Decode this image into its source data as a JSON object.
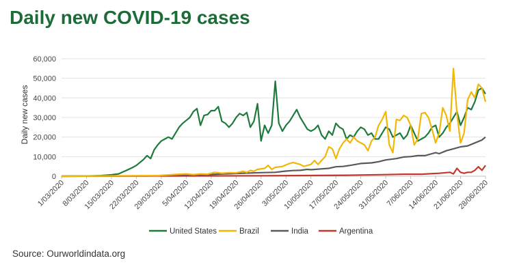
{
  "title": "Daily new COVID-19 cases",
  "source": "Source: Ourworldindata.org",
  "chart_data": {
    "type": "line",
    "title": "Daily new COVID-19 cases",
    "xlabel": "",
    "ylabel": "Daily new cases",
    "ylim": [
      0,
      60000
    ],
    "yticks": [
      "0",
      "10,000",
      "20,000",
      "30,000",
      "40,000",
      "50,000",
      "60,000"
    ],
    "xticks": [
      "1/03/2020",
      "8/03/2020",
      "15/03/2020",
      "22/03/2020",
      "29/03/2020",
      "5/04/2020",
      "12/04/2020",
      "19/04/2020",
      "26/04/2020",
      "3/05/2020",
      "10/05/2020",
      "17/05/2020",
      "24/05/2020",
      "31/05/2020",
      "7/06/2020",
      "14/06/2020",
      "21/06/2020",
      "28/06/2020"
    ],
    "grid": true,
    "legend_position": "bottom",
    "series": [
      {
        "name": "United States",
        "color": "#1e7a3c",
        "points": [
          [
            "1/03/2020",
            0
          ],
          [
            "8/03/2020",
            100
          ],
          [
            "12/03/2020",
            300
          ],
          [
            "15/03/2020",
            700
          ],
          [
            "17/03/2020",
            1200
          ],
          [
            "19/03/2020",
            2800
          ],
          [
            "21/03/2020",
            4500
          ],
          [
            "22/03/2020",
            5500
          ],
          [
            "24/03/2020",
            8500
          ],
          [
            "25/03/2020",
            10500
          ],
          [
            "26/03/2020",
            9000
          ],
          [
            "27/03/2020",
            13500
          ],
          [
            "28/03/2020",
            16000
          ],
          [
            "29/03/2020",
            18000
          ],
          [
            "30/03/2020",
            19000
          ],
          [
            "31/03/2020",
            20000
          ],
          [
            "1/04/2020",
            19000
          ],
          [
            "2/04/2020",
            22000
          ],
          [
            "3/04/2020",
            25000
          ],
          [
            "4/04/2020",
            27000
          ],
          [
            "5/04/2020",
            28500
          ],
          [
            "6/04/2020",
            30000
          ],
          [
            "7/04/2020",
            33000
          ],
          [
            "8/04/2020",
            34500
          ],
          [
            "9/04/2020",
            26000
          ],
          [
            "10/04/2020",
            31000
          ],
          [
            "11/04/2020",
            31500
          ],
          [
            "12/04/2020",
            33500
          ],
          [
            "13/04/2020",
            33500
          ],
          [
            "14/04/2020",
            35500
          ],
          [
            "15/04/2020",
            28000
          ],
          [
            "16/04/2020",
            27000
          ],
          [
            "17/04/2020",
            25000
          ],
          [
            "18/04/2020",
            27000
          ],
          [
            "19/04/2020",
            30000
          ],
          [
            "20/04/2020",
            32000
          ],
          [
            "21/04/2020",
            31000
          ],
          [
            "22/04/2020",
            32500
          ],
          [
            "23/04/2020",
            25000
          ],
          [
            "24/04/2020",
            28000
          ],
          [
            "25/04/2020",
            37000
          ],
          [
            "26/04/2020",
            18000
          ],
          [
            "27/04/2020",
            26000
          ],
          [
            "28/04/2020",
            22000
          ],
          [
            "29/04/2020",
            26000
          ],
          [
            "30/04/2020",
            48500
          ],
          [
            "1/05/2020",
            27000
          ],
          [
            "2/05/2020",
            23000
          ],
          [
            "3/05/2020",
            26000
          ],
          [
            "4/05/2020",
            28000
          ],
          [
            "5/05/2020",
            31000
          ],
          [
            "6/05/2020",
            34000
          ],
          [
            "7/05/2020",
            30000
          ],
          [
            "8/05/2020",
            27000
          ],
          [
            "9/05/2020",
            24000
          ],
          [
            "10/05/2020",
            23000
          ],
          [
            "11/05/2020",
            24000
          ],
          [
            "12/05/2020",
            26000
          ],
          [
            "13/05/2020",
            21000
          ],
          [
            "14/05/2020",
            19000
          ],
          [
            "15/05/2020",
            23000
          ],
          [
            "16/05/2020",
            21000
          ],
          [
            "17/05/2020",
            27000
          ],
          [
            "18/05/2020",
            25000
          ],
          [
            "19/05/2020",
            24000
          ],
          [
            "20/05/2020",
            19000
          ],
          [
            "21/05/2020",
            21000
          ],
          [
            "22/05/2020",
            20000
          ],
          [
            "23/05/2020",
            23000
          ],
          [
            "24/05/2020",
            25000
          ],
          [
            "25/05/2020",
            24000
          ],
          [
            "26/05/2020",
            21000
          ],
          [
            "27/05/2020",
            22000
          ],
          [
            "28/05/2020",
            19000
          ],
          [
            "29/05/2020",
            19000
          ],
          [
            "30/05/2020",
            22000
          ],
          [
            "31/05/2020",
            25000
          ],
          [
            "1/06/2020",
            24000
          ],
          [
            "2/06/2020",
            20000
          ],
          [
            "3/06/2020",
            21000
          ],
          [
            "4/06/2020",
            22000
          ],
          [
            "5/06/2020",
            19000
          ],
          [
            "6/06/2020",
            21000
          ],
          [
            "7/06/2020",
            26000
          ],
          [
            "8/06/2020",
            22000
          ],
          [
            "9/06/2020",
            18000
          ],
          [
            "10/06/2020",
            19000
          ],
          [
            "11/06/2020",
            20000
          ],
          [
            "12/06/2020",
            22000
          ],
          [
            "13/06/2020",
            25000
          ],
          [
            "14/06/2020",
            26000
          ],
          [
            "15/06/2020",
            20000
          ],
          [
            "16/06/2020",
            22000
          ],
          [
            "17/06/2020",
            25000
          ],
          [
            "18/06/2020",
            27000
          ],
          [
            "19/06/2020",
            30000
          ],
          [
            "20/06/2020",
            33000
          ],
          [
            "21/06/2020",
            26000
          ],
          [
            "22/06/2020",
            30000
          ],
          [
            "23/06/2020",
            35000
          ],
          [
            "24/06/2020",
            34000
          ],
          [
            "25/06/2020",
            38000
          ],
          [
            "26/06/2020",
            44000
          ],
          [
            "27/06/2020",
            45000
          ],
          [
            "28/06/2020",
            42000
          ]
        ]
      },
      {
        "name": "Brazil",
        "color": "#f2b705",
        "points": [
          [
            "1/03/2020",
            0
          ],
          [
            "28/03/2020",
            300
          ],
          [
            "3/04/2020",
            1000
          ],
          [
            "5/04/2020",
            1200
          ],
          [
            "7/04/2020",
            800
          ],
          [
            "9/04/2020",
            1200
          ],
          [
            "11/04/2020",
            1000
          ],
          [
            "13/04/2020",
            2000
          ],
          [
            "15/04/2020",
            1500
          ],
          [
            "17/04/2020",
            1800
          ],
          [
            "19/04/2020",
            1700
          ],
          [
            "21/04/2020",
            2500
          ],
          [
            "22/04/2020",
            1900
          ],
          [
            "23/04/2020",
            3000
          ],
          [
            "24/04/2020",
            2500
          ],
          [
            "25/04/2020",
            3500
          ],
          [
            "27/04/2020",
            4000
          ],
          [
            "28/04/2020",
            5500
          ],
          [
            "29/04/2020",
            3500
          ],
          [
            "30/04/2020",
            4500
          ],
          [
            "2/05/2020",
            5000
          ],
          [
            "4/05/2020",
            6500
          ],
          [
            "5/05/2020",
            7000
          ],
          [
            "7/05/2020",
            6000
          ],
          [
            "8/05/2020",
            5000
          ],
          [
            "10/05/2020",
            6000
          ],
          [
            "11/05/2020",
            8000
          ],
          [
            "12/05/2020",
            6000
          ],
          [
            "14/05/2020",
            10000
          ],
          [
            "15/05/2020",
            15000
          ],
          [
            "16/05/2020",
            14000
          ],
          [
            "17/05/2020",
            9000
          ],
          [
            "18/05/2020",
            14000
          ],
          [
            "19/05/2020",
            17000
          ],
          [
            "20/05/2020",
            19000
          ],
          [
            "21/05/2020",
            17000
          ],
          [
            "22/05/2020",
            20000
          ],
          [
            "23/05/2020",
            18000
          ],
          [
            "25/05/2020",
            16000
          ],
          [
            "26/05/2020",
            13000
          ],
          [
            "27/05/2020",
            18000
          ],
          [
            "28/05/2020",
            20000
          ],
          [
            "29/05/2020",
            26000
          ],
          [
            "30/05/2020",
            29000
          ],
          [
            "31/05/2020",
            33000
          ],
          [
            "1/06/2020",
            16000
          ],
          [
            "2/06/2020",
            12000
          ],
          [
            "3/06/2020",
            29000
          ],
          [
            "4/06/2020",
            28500
          ],
          [
            "5/06/2020",
            31000
          ],
          [
            "6/06/2020",
            30000
          ],
          [
            "7/06/2020",
            26000
          ],
          [
            "8/06/2020",
            16000
          ],
          [
            "9/06/2020",
            19000
          ],
          [
            "10/06/2020",
            32000
          ],
          [
            "11/06/2020",
            32500
          ],
          [
            "12/06/2020",
            30000
          ],
          [
            "13/06/2020",
            24000
          ],
          [
            "14/06/2020",
            17000
          ],
          [
            "15/06/2020",
            22000
          ],
          [
            "16/06/2020",
            35000
          ],
          [
            "17/06/2020",
            31000
          ],
          [
            "18/06/2020",
            23000
          ],
          [
            "19/06/2020",
            55000
          ],
          [
            "20/06/2020",
            32000
          ],
          [
            "21/06/2020",
            17000
          ],
          [
            "22/06/2020",
            22000
          ],
          [
            "23/06/2020",
            39000
          ],
          [
            "24/06/2020",
            43000
          ],
          [
            "25/06/2020",
            40000
          ],
          [
            "26/06/2020",
            47000
          ],
          [
            "27/06/2020",
            45000
          ],
          [
            "28/06/2020",
            38000
          ]
        ]
      },
      {
        "name": "India",
        "color": "#595959",
        "points": [
          [
            "1/03/2020",
            0
          ],
          [
            "25/03/2020",
            100
          ],
          [
            "5/04/2020",
            500
          ],
          [
            "12/04/2020",
            900
          ],
          [
            "19/04/2020",
            1400
          ],
          [
            "26/04/2020",
            1800
          ],
          [
            "30/04/2020",
            2000
          ],
          [
            "3/05/2020",
            2600
          ],
          [
            "5/05/2020",
            2900
          ],
          [
            "7/05/2020",
            3000
          ],
          [
            "9/05/2020",
            3500
          ],
          [
            "10/05/2020",
            3300
          ],
          [
            "12/05/2020",
            3600
          ],
          [
            "15/05/2020",
            4000
          ],
          [
            "17/05/2020",
            4800
          ],
          [
            "19/05/2020",
            5000
          ],
          [
            "21/05/2020",
            5500
          ],
          [
            "24/05/2020",
            6500
          ],
          [
            "27/05/2020",
            6800
          ],
          [
            "29/05/2020",
            7400
          ],
          [
            "31/05/2020",
            8300
          ],
          [
            "3/06/2020",
            9000
          ],
          [
            "5/06/2020",
            9800
          ],
          [
            "7/06/2020",
            10000
          ],
          [
            "9/06/2020",
            10500
          ],
          [
            "11/06/2020",
            10500
          ],
          [
            "13/06/2020",
            11500
          ],
          [
            "14/06/2020",
            12000
          ],
          [
            "15/06/2020",
            11500
          ],
          [
            "17/06/2020",
            13000
          ],
          [
            "19/06/2020",
            14000
          ],
          [
            "21/06/2020",
            15000
          ],
          [
            "23/06/2020",
            15500
          ],
          [
            "25/06/2020",
            17000
          ],
          [
            "27/06/2020",
            18500
          ],
          [
            "28/06/2020",
            20000
          ]
        ]
      },
      {
        "name": "Argentina",
        "color": "#c0392b",
        "points": [
          [
            "1/03/2020",
            0
          ],
          [
            "20/03/2020",
            100
          ],
          [
            "5/04/2020",
            100
          ],
          [
            "26/04/2020",
            200
          ],
          [
            "20/05/2020",
            500
          ],
          [
            "31/05/2020",
            800
          ],
          [
            "5/06/2020",
            1000
          ],
          [
            "10/06/2020",
            1000
          ],
          [
            "15/06/2020",
            1500
          ],
          [
            "18/06/2020",
            2000
          ],
          [
            "19/06/2020",
            1200
          ],
          [
            "20/06/2020",
            4000
          ],
          [
            "21/06/2020",
            2000
          ],
          [
            "22/06/2020",
            1500
          ],
          [
            "23/06/2020",
            2000
          ],
          [
            "24/06/2020",
            2000
          ],
          [
            "25/06/2020",
            3000
          ],
          [
            "26/06/2020",
            4800
          ],
          [
            "27/06/2020",
            3000
          ],
          [
            "28/06/2020",
            5500
          ]
        ]
      }
    ]
  }
}
